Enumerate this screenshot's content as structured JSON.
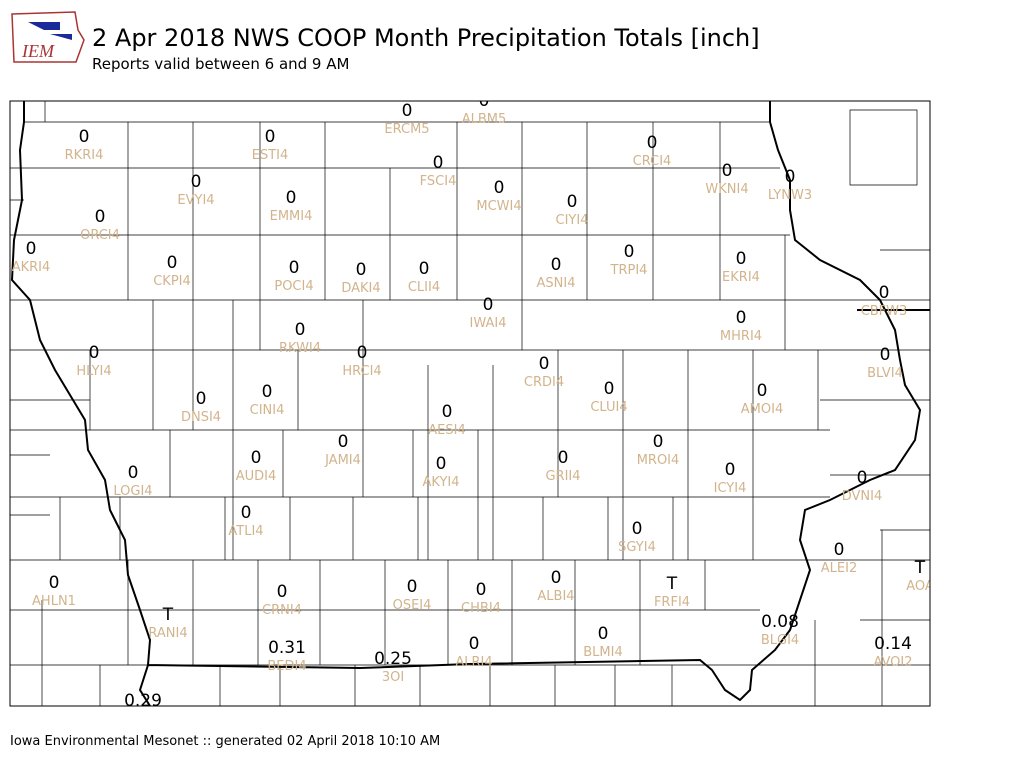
{
  "header": {
    "logo_text": "IEM",
    "title": "2 Apr 2018 NWS COOP Month Precipitation Totals [inch]",
    "subtitle": "Reports valid between 6 and 9 AM"
  },
  "stations": [
    {
      "value": "0",
      "id": "RKRI4"
    },
    {
      "value": "0",
      "id": "ESTI4"
    },
    {
      "value": "0",
      "id": "ERCM5"
    },
    {
      "value": "0",
      "id": "ALBM5"
    },
    {
      "value": "0",
      "id": "CRCI4"
    },
    {
      "value": "0",
      "id": "FSCI4"
    },
    {
      "value": "0",
      "id": "WKNI4"
    },
    {
      "value": "0",
      "id": "LYNW3"
    },
    {
      "value": "0",
      "id": "EVYI4"
    },
    {
      "value": "0",
      "id": "MCWI4"
    },
    {
      "value": "0",
      "id": "EMMI4"
    },
    {
      "value": "0",
      "id": "CIYI4"
    },
    {
      "value": "0",
      "id": "ORCI4"
    },
    {
      "value": "0",
      "id": "AKRI4"
    },
    {
      "value": "0",
      "id": "TRPI4"
    },
    {
      "value": "0",
      "id": "EKRI4"
    },
    {
      "value": "0",
      "id": "CKPI4"
    },
    {
      "value": "0",
      "id": "ASNI4"
    },
    {
      "value": "0",
      "id": "POCI4"
    },
    {
      "value": "0",
      "id": "DAKI4"
    },
    {
      "value": "0",
      "id": "CLII4"
    },
    {
      "value": "0",
      "id": "CBFW3"
    },
    {
      "value": "0",
      "id": "IWAI4"
    },
    {
      "value": "0",
      "id": "MHRI4"
    },
    {
      "value": "0",
      "id": "RKWI4"
    },
    {
      "value": "0",
      "id": "HLYI4"
    },
    {
      "value": "0",
      "id": "HRCI4"
    },
    {
      "value": "0",
      "id": "BLVI4"
    },
    {
      "value": "0",
      "id": "CRDI4"
    },
    {
      "value": "0",
      "id": "CLUI4"
    },
    {
      "value": "0",
      "id": "AMOI4"
    },
    {
      "value": "0",
      "id": "DNSI4"
    },
    {
      "value": "0",
      "id": "CINI4"
    },
    {
      "value": "0",
      "id": "AESI4"
    },
    {
      "value": "0",
      "id": "JAMI4"
    },
    {
      "value": "0",
      "id": "MROI4"
    },
    {
      "value": "0",
      "id": "AUDI4"
    },
    {
      "value": "0",
      "id": "GRII4"
    },
    {
      "value": "0",
      "id": "AKYI4"
    },
    {
      "value": "0",
      "id": "ICYI4"
    },
    {
      "value": "0",
      "id": "LOGI4"
    },
    {
      "value": "0",
      "id": "DVNI4"
    },
    {
      "value": "0",
      "id": "ATLI4"
    },
    {
      "value": "0",
      "id": "SGYI4"
    },
    {
      "value": "0",
      "id": "ALEI2"
    },
    {
      "value": "T",
      "id": "AOA"
    },
    {
      "value": "0",
      "id": "AHLN1"
    },
    {
      "value": "0",
      "id": "OSEI4"
    },
    {
      "value": "0",
      "id": "CRNI4"
    },
    {
      "value": "0",
      "id": "CHBI4"
    },
    {
      "value": "0",
      "id": "ALBI4"
    },
    {
      "value": "T",
      "id": "FRFI4"
    },
    {
      "value": "T",
      "id": "RANI4"
    },
    {
      "value": "0.08",
      "id": "BLGI4"
    },
    {
      "value": "0.14",
      "id": "AVOI2"
    },
    {
      "value": "0",
      "id": "BLMI4"
    },
    {
      "value": "0.31",
      "id": "BEDI4"
    },
    {
      "value": "0",
      "id": "ALRI4"
    },
    {
      "value": "0.25",
      "id": "3OI"
    },
    {
      "value": "0.29"
    }
  ],
  "footer": "Iowa Environmental Mesonet :: generated 02 April 2018 10:10 AM"
}
